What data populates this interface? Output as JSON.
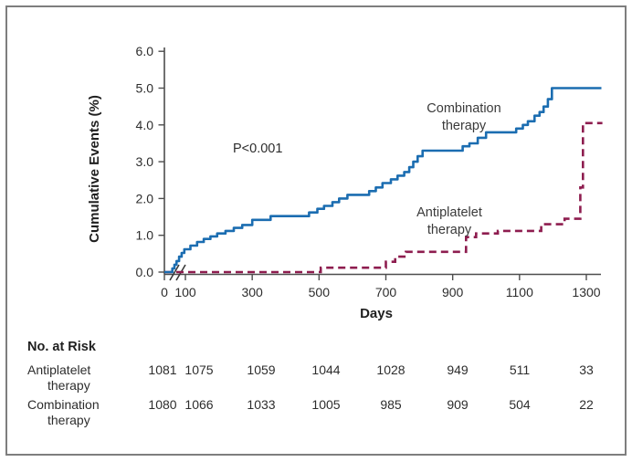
{
  "figure": {
    "ylabel": "Cumulative Events (%)",
    "xlabel": "Days",
    "p_value": "P<0.001",
    "series_labels": {
      "combination": [
        "Combination",
        "therapy"
      ],
      "antiplatelet": [
        "Antiplatelet",
        "therapy"
      ]
    }
  },
  "risk_table": {
    "header": "No. at Risk",
    "rows": [
      {
        "label": [
          "Antiplatelet",
          "therapy"
        ],
        "values": [
          "1081",
          "1075",
          "1059",
          "1044",
          "1028",
          "949",
          "511",
          "33"
        ]
      },
      {
        "label": [
          "Combination",
          "therapy"
        ],
        "values": [
          "1080",
          "1066",
          "1033",
          "1005",
          "985",
          "909",
          "504",
          "22"
        ]
      }
    ]
  },
  "chart_data": {
    "type": "line",
    "subtype": "kaplan-meier-step",
    "title": "",
    "xlabel": "Days",
    "ylabel": "Cumulative Events (%)",
    "xlim": [
      0,
      1350
    ],
    "ylim": [
      0,
      6
    ],
    "x_axis_break": "between 0 and 100",
    "p_value": "P<0.001",
    "x_ticks": [
      {
        "day": 0,
        "label": "0"
      },
      {
        "day": 100,
        "label": "100"
      },
      {
        "day": 300,
        "label": "300"
      },
      {
        "day": 500,
        "label": "500"
      },
      {
        "day": 700,
        "label": "700"
      },
      {
        "day": 900,
        "label": "900"
      },
      {
        "day": 1100,
        "label": "1100"
      },
      {
        "day": 1300,
        "label": "1300"
      }
    ],
    "y_ticks": [
      {
        "value": 0,
        "label": "0.0"
      },
      {
        "value": 1,
        "label": "1.0"
      },
      {
        "value": 2,
        "label": "2.0"
      },
      {
        "value": 3,
        "label": "3.0"
      },
      {
        "value": 4,
        "label": "4.0"
      },
      {
        "value": 5,
        "label": "5.0"
      },
      {
        "value": 6,
        "label": "6.0"
      }
    ],
    "colors": {
      "combination": "#1b6db1",
      "antiplatelet": "#8e1d4f",
      "axis": "#4d4d4d",
      "text": "#2d2d2d"
    },
    "series": [
      {
        "name": "Combination therapy",
        "style": "solid",
        "points_day_pct": [
          [
            0,
            0
          ],
          [
            30,
            0
          ],
          [
            38,
            0.1
          ],
          [
            48,
            0.2
          ],
          [
            58,
            0.3
          ],
          [
            70,
            0.42
          ],
          [
            82,
            0.52
          ],
          [
            95,
            0.62
          ],
          [
            115,
            0.72
          ],
          [
            135,
            0.82
          ],
          [
            155,
            0.9
          ],
          [
            175,
            0.97
          ],
          [
            195,
            1.05
          ],
          [
            220,
            1.12
          ],
          [
            245,
            1.2
          ],
          [
            270,
            1.28
          ],
          [
            300,
            1.42
          ],
          [
            355,
            1.52
          ],
          [
            470,
            1.62
          ],
          [
            495,
            1.72
          ],
          [
            515,
            1.8
          ],
          [
            540,
            1.9
          ],
          [
            560,
            2.0
          ],
          [
            585,
            2.1
          ],
          [
            650,
            2.2
          ],
          [
            670,
            2.3
          ],
          [
            690,
            2.42
          ],
          [
            715,
            2.52
          ],
          [
            735,
            2.62
          ],
          [
            755,
            2.72
          ],
          [
            770,
            2.85
          ],
          [
            782,
            3.0
          ],
          [
            795,
            3.15
          ],
          [
            810,
            3.3
          ],
          [
            930,
            3.42
          ],
          [
            950,
            3.5
          ],
          [
            975,
            3.65
          ],
          [
            1000,
            3.8
          ],
          [
            1090,
            3.9
          ],
          [
            1110,
            4.0
          ],
          [
            1125,
            4.1
          ],
          [
            1145,
            4.25
          ],
          [
            1160,
            4.35
          ],
          [
            1172,
            4.5
          ],
          [
            1185,
            4.7
          ],
          [
            1197,
            5.0
          ],
          [
            1345,
            5.0
          ]
        ]
      },
      {
        "name": "Antiplatelet therapy",
        "style": "dashed",
        "points_day_pct": [
          [
            0,
            0
          ],
          [
            505,
            0.12
          ],
          [
            700,
            0.28
          ],
          [
            728,
            0.42
          ],
          [
            760,
            0.55
          ],
          [
            940,
            0.95
          ],
          [
            970,
            1.05
          ],
          [
            1035,
            1.12
          ],
          [
            1165,
            1.3
          ],
          [
            1235,
            1.45
          ],
          [
            1282,
            2.3
          ],
          [
            1290,
            4.05
          ],
          [
            1348,
            4.05
          ]
        ]
      }
    ],
    "risk_table": {
      "header": "No. at Risk",
      "columns_days": [
        0,
        100,
        300,
        500,
        700,
        900,
        1100,
        1300
      ],
      "rows": [
        {
          "name": "Antiplatelet therapy",
          "values": [
            1081,
            1075,
            1059,
            1044,
            1028,
            949,
            511,
            33
          ]
        },
        {
          "name": "Combination therapy",
          "values": [
            1080,
            1066,
            1033,
            1005,
            985,
            909,
            504,
            22
          ]
        }
      ]
    }
  }
}
